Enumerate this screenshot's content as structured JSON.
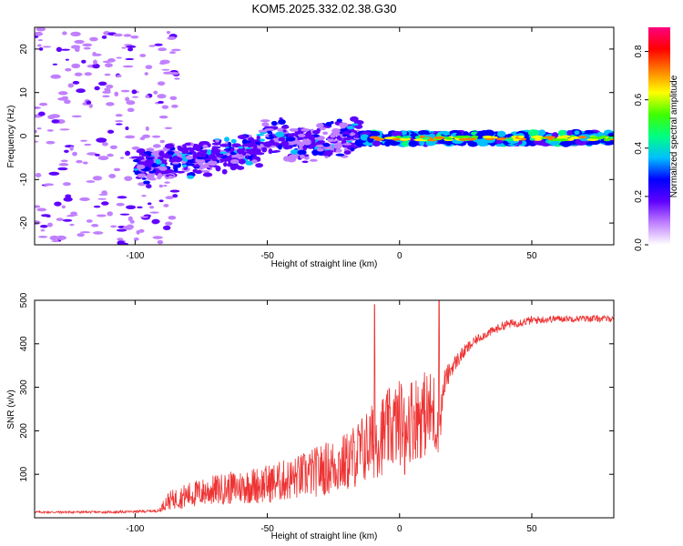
{
  "title": "KOM5.2025.332.02.38.G30",
  "chart_data": [
    {
      "type": "heatmap",
      "xlabel": "Height of straight line (km)",
      "ylabel": "Frequency (Hz)",
      "xlim": [
        -138,
        81
      ],
      "ylim": [
        -25,
        25
      ],
      "xticks": [
        -100,
        -50,
        0,
        50
      ],
      "yticks": [
        -20,
        -10,
        0,
        10,
        20
      ],
      "xtick_labels": [
        "-100",
        "-50",
        "0",
        "50"
      ],
      "ytick_labels": [
        "-20",
        "-10",
        "0",
        "10",
        "20"
      ],
      "colorbar": {
        "label": "Normalized spectral amplitude",
        "range": [
          0,
          0.9
        ],
        "ticks": [
          0.0,
          0.2,
          0.4,
          0.6,
          0.8
        ],
        "tick_labels": [
          "0.0",
          "0.2",
          "0.4",
          "0.6",
          "0.8"
        ],
        "colormap": [
          "#ffffff",
          "#c080ff",
          "#6000ff",
          "#0000ff",
          "#00c0ff",
          "#00ff80",
          "#40ff00",
          "#ffff00",
          "#ff8000",
          "#ff0000",
          "#ff0080"
        ]
      },
      "features": [
        {
          "region": "scattered noise",
          "x_range": [
            -138,
            -90
          ],
          "y_range": [
            -25,
            25
          ],
          "amplitude": 0.05
        },
        {
          "region": "diffuse band",
          "x_range": [
            -100,
            -15
          ],
          "y_center_start": -7,
          "y_center_end": 0,
          "amplitude": 0.2
        },
        {
          "region": "strong line",
          "x_range": [
            -15,
            81
          ],
          "y_center": -0.5,
          "amplitude": 0.6
        }
      ]
    },
    {
      "type": "line",
      "xlabel": "Height of straight line (km)",
      "ylabel": "SNR (v/v)",
      "xlim": [
        -138,
        81
      ],
      "ylim": [
        0,
        500
      ],
      "xticks": [
        -100,
        -50,
        0,
        50
      ],
      "yticks": [
        100,
        200,
        300,
        400,
        500
      ],
      "xtick_labels": [
        "-100",
        "-50",
        "0",
        "50"
      ],
      "ytick_labels": [
        "100",
        "200",
        "300",
        "400",
        "500"
      ],
      "color": "#ee3333",
      "x": [
        -138,
        -130,
        -120,
        -110,
        -100,
        -95,
        -91,
        -88,
        -80,
        -70,
        -60,
        -50,
        -40,
        -30,
        -20,
        -15,
        -10,
        -5,
        0,
        5,
        10,
        13,
        15,
        17,
        20,
        25,
        30,
        40,
        50,
        60,
        70,
        81
      ],
      "baseline": [
        12,
        12,
        12,
        12,
        13,
        14,
        15,
        30,
        40,
        50,
        55,
        60,
        70,
        85,
        100,
        120,
        140,
        160,
        180,
        190,
        200,
        200,
        185,
        300,
        340,
        380,
        410,
        440,
        450,
        455,
        455,
        455
      ],
      "amplitude": [
        5,
        5,
        5,
        5,
        6,
        6,
        6,
        40,
        60,
        70,
        80,
        90,
        100,
        120,
        140,
        160,
        180,
        190,
        200,
        200,
        200,
        200,
        120,
        60,
        40,
        30,
        20,
        20,
        20,
        15,
        15,
        15
      ],
      "peaks": [
        {
          "x": -9.5,
          "y": 490
        },
        {
          "x": 15,
          "y": 500
        },
        {
          "x": 2,
          "y": 100
        },
        {
          "x": 13.5,
          "y": 175
        }
      ]
    }
  ]
}
